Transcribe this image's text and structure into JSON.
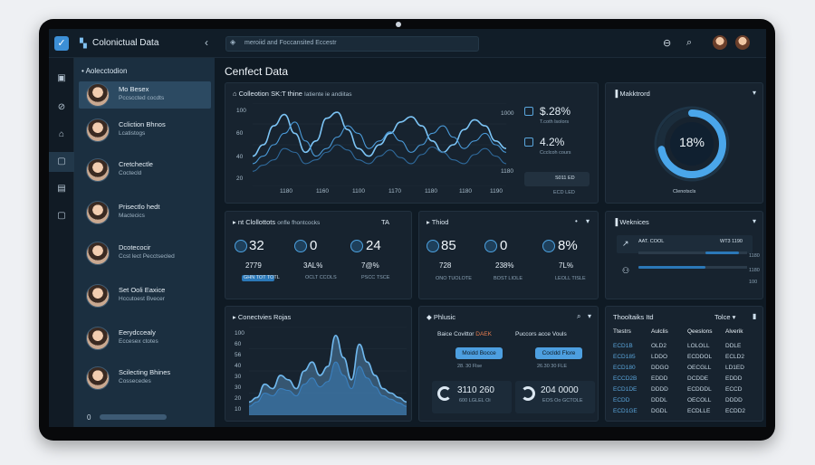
{
  "topbar": {
    "app_title": "Colonictual Data",
    "search_value": "meroiid and Foccansited Eccestr"
  },
  "sidebar": {
    "heading": "Aolecctodion",
    "footer_count": "0",
    "contacts": [
      {
        "name": "Mo Besex",
        "sub": "Pccsccted cocdts"
      },
      {
        "name": "Ccliction Bhnos",
        "sub": "Lcatistogs"
      },
      {
        "name": "Cretchectle",
        "sub": "Coctecld"
      },
      {
        "name": "Prisectlo hedt",
        "sub": "Mactecics"
      },
      {
        "name": "Dcotecocir",
        "sub": "Ccst lect Pecctsecled"
      },
      {
        "name": "Set Ooli Eaxice",
        "sub": "Hccutoest Bvecer"
      },
      {
        "name": "Eerydccealy",
        "sub": "Eccesex ctotes"
      },
      {
        "name": "Scilecting Bhines",
        "sub": "Cossecedes"
      }
    ]
  },
  "main": {
    "page_title": "Cenfect Data",
    "collection_panel": {
      "title": "Colleotion SK:T thine",
      "subtitle": "Iatiente ie andiitas",
      "y_ticks": [
        "100",
        "60",
        "40",
        "20"
      ],
      "x_ticks": [
        "1180",
        "1160",
        "1100",
        "1170",
        "1180",
        "1180",
        "1190"
      ],
      "stat1_value": "$.28%",
      "stat1_label": "T.coth lsolors",
      "stat2_value": "4.2%",
      "stat2_label": "Ccclcoh cours",
      "right_tick_1": "1000",
      "right_tick_2": "1180",
      "bottom_tag": "S011 ED",
      "bottom_sub": "ECD LED"
    },
    "market_panel": {
      "title": "Makktrord",
      "gauge_value": "18%",
      "gauge_label": "Clenotscls",
      "gauge_fraction": 0.72
    },
    "stats_a": {
      "title": "nt Clollottots",
      "subtitle": "onfle fhontcocks",
      "badge": "TA",
      "v1": "32",
      "v2": "0",
      "v3": "24",
      "s1": "2779",
      "s2": "3AL%",
      "s3": "7@%",
      "t1": "GHN TOT TOTL",
      "t2": "OCLT CCOLS",
      "t3": "PSCC TSCE"
    },
    "stats_b": {
      "title": "Thiod",
      "v1": "85",
      "v2": "0",
      "v3": "8%",
      "s1": "728",
      "s2": "238%",
      "s3": "7L%",
      "t1": "ONO TUOLOTE",
      "t2": "BOST LIOLE",
      "t3": "LEOLL TISLE"
    },
    "webnotes_panel": {
      "title": "Weknices",
      "col1": "AAT. COOL",
      "col2": "WT3 1190",
      "bar1_fraction": 0.8,
      "bar2_fraction": 0.62,
      "r1": "1180",
      "r2": "1180",
      "r3": "100"
    },
    "conectives_panel": {
      "title": "Conectvies Rojas",
      "y_ticks": [
        "100",
        "60",
        "56",
        "40",
        "30",
        "30",
        "20",
        "10"
      ]
    },
    "philuscic_panel": {
      "title": "Phlusic",
      "label1": "Baice Covittor",
      "label1b": "DAEK",
      "label2": "Puccors acce",
      "label2b": "Vouls",
      "btn1": "Moidd Bocce",
      "btn2": "Cocldd Flore",
      "sub1": "28. 30 Flse",
      "sub2": "26.30 30 FLE",
      "big1": "3110 260",
      "big1_sub": "600 LGLEL Oi",
      "big2": "204 0000",
      "big2_sub": "EOS Oo GCTOLE"
    },
    "table_panel": {
      "title": "Thooltaiks Itd",
      "filter": "Tolce",
      "headers": [
        "Ttestrs",
        "Aulclis",
        "Qeeslons",
        "Alverik"
      ],
      "rows": [
        [
          "ECD1B",
          "OLD2",
          "LOLOLL",
          "DDLE"
        ],
        [
          "ECD185",
          "LDDO",
          "ECDDOL",
          "ECLD2"
        ],
        [
          "ECD180",
          "DDGO",
          "OECGLL",
          "LD1ED"
        ],
        [
          "ECCD2B",
          "EDDD",
          "DCDDE",
          "EDDD"
        ],
        [
          "ECD1DE",
          "DDDD",
          "ECDDDL",
          "ECCD"
        ],
        [
          "ECDD",
          "DDDL",
          "OECOLL",
          "DDDD"
        ],
        [
          "ECD1GE",
          "DGDL",
          "ECDLLE",
          "ECDD2"
        ]
      ]
    }
  },
  "chart_data": [
    {
      "type": "line",
      "name": "collection-chart",
      "x": [
        0,
        1,
        2,
        3,
        4,
        5,
        6,
        7,
        8,
        9,
        10,
        11,
        12,
        13,
        14,
        15,
        16,
        17,
        18,
        19,
        20,
        21,
        22,
        23,
        24
      ],
      "series": [
        {
          "values": [
            40,
            55,
            80,
            95,
            70,
            45,
            60,
            90,
            98,
            75,
            50,
            40,
            55,
            70,
            85,
            92,
            80,
            60,
            45,
            55,
            75,
            88,
            80,
            60,
            50
          ]
        },
        {
          "values": [
            30,
            40,
            55,
            70,
            85,
            60,
            40,
            50,
            65,
            80,
            70,
            50,
            60,
            72,
            60,
            45,
            55,
            70,
            80,
            65,
            50,
            60,
            70,
            55,
            45
          ]
        },
        {
          "values": [
            20,
            28,
            35,
            50,
            45,
            30,
            35,
            45,
            55,
            48,
            35,
            30,
            40,
            48,
            38,
            30,
            42,
            52,
            45,
            35,
            30,
            42,
            50,
            40,
            30
          ]
        }
      ],
      "ylim": [
        0,
        110
      ]
    },
    {
      "type": "area",
      "name": "conectives-chart",
      "x": [
        0,
        1,
        2,
        3,
        4,
        5,
        6,
        7,
        8,
        9,
        10,
        11,
        12,
        13,
        14,
        15,
        16,
        17,
        18,
        19,
        20
      ],
      "series": [
        {
          "values": [
            15,
            20,
            35,
            30,
            45,
            40,
            30,
            50,
            60,
            45,
            55,
            90,
            65,
            40,
            80,
            60,
            45,
            30,
            25,
            20,
            15
          ]
        },
        {
          "values": [
            10,
            15,
            25,
            22,
            30,
            28,
            22,
            35,
            42,
            32,
            38,
            60,
            45,
            30,
            55,
            42,
            32,
            22,
            18,
            14,
            10
          ]
        }
      ],
      "ylim": [
        0,
        100
      ]
    }
  ]
}
